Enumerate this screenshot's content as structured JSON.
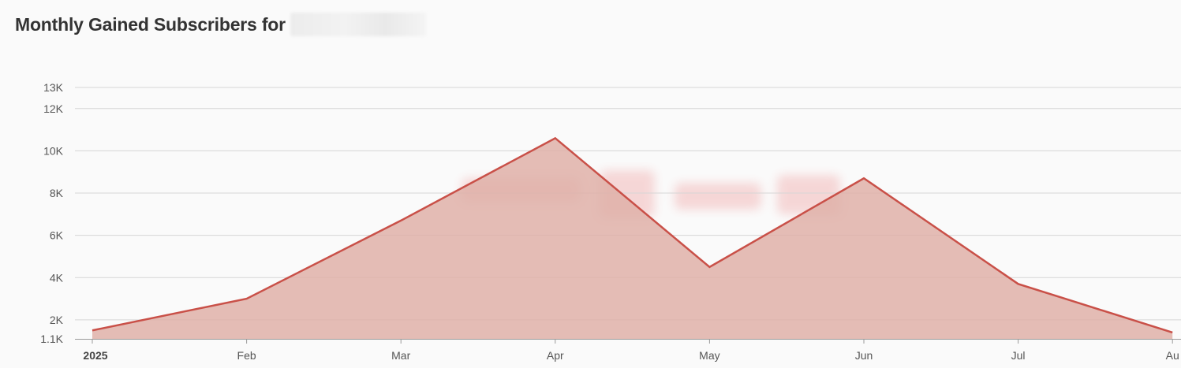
{
  "title": "Monthly Gained Subscribers for",
  "colors": {
    "line": "#c95048",
    "fill": "#dfb0a8",
    "grid": "#d6d6d6",
    "axis": "#9a9a9a"
  },
  "chart_data": {
    "type": "area",
    "title": "Monthly Gained Subscribers for",
    "x_labels": [
      "2025",
      "Feb",
      "Mar",
      "Apr",
      "May",
      "Jun",
      "Jul",
      "Au"
    ],
    "y_ticks": [
      {
        "label": "13K",
        "value": 13000
      },
      {
        "label": "12K",
        "value": 12000
      },
      {
        "label": "10K",
        "value": 10000
      },
      {
        "label": "8K",
        "value": 8000
      },
      {
        "label": "6K",
        "value": 6000
      },
      {
        "label": "4K",
        "value": 4000
      },
      {
        "label": "2K",
        "value": 2000
      },
      {
        "label": "1.1K",
        "value": 1100
      }
    ],
    "ylim": [
      1100,
      13000
    ],
    "grid": true,
    "series": [
      {
        "points": [
          {
            "x": "2025-01-01",
            "y": 1500
          },
          {
            "x": "2025-02-01",
            "y": 3000
          },
          {
            "x": "2025-03-01",
            "y": 6700
          },
          {
            "x": "2025-04-01",
            "y": 10600
          },
          {
            "x": "2025-05-01",
            "y": 4500
          },
          {
            "x": "2025-06-01",
            "y": 8700
          },
          {
            "x": "2025-07-01",
            "y": 3700
          },
          {
            "x": "2025-08-01",
            "y": 1400
          }
        ]
      }
    ]
  }
}
